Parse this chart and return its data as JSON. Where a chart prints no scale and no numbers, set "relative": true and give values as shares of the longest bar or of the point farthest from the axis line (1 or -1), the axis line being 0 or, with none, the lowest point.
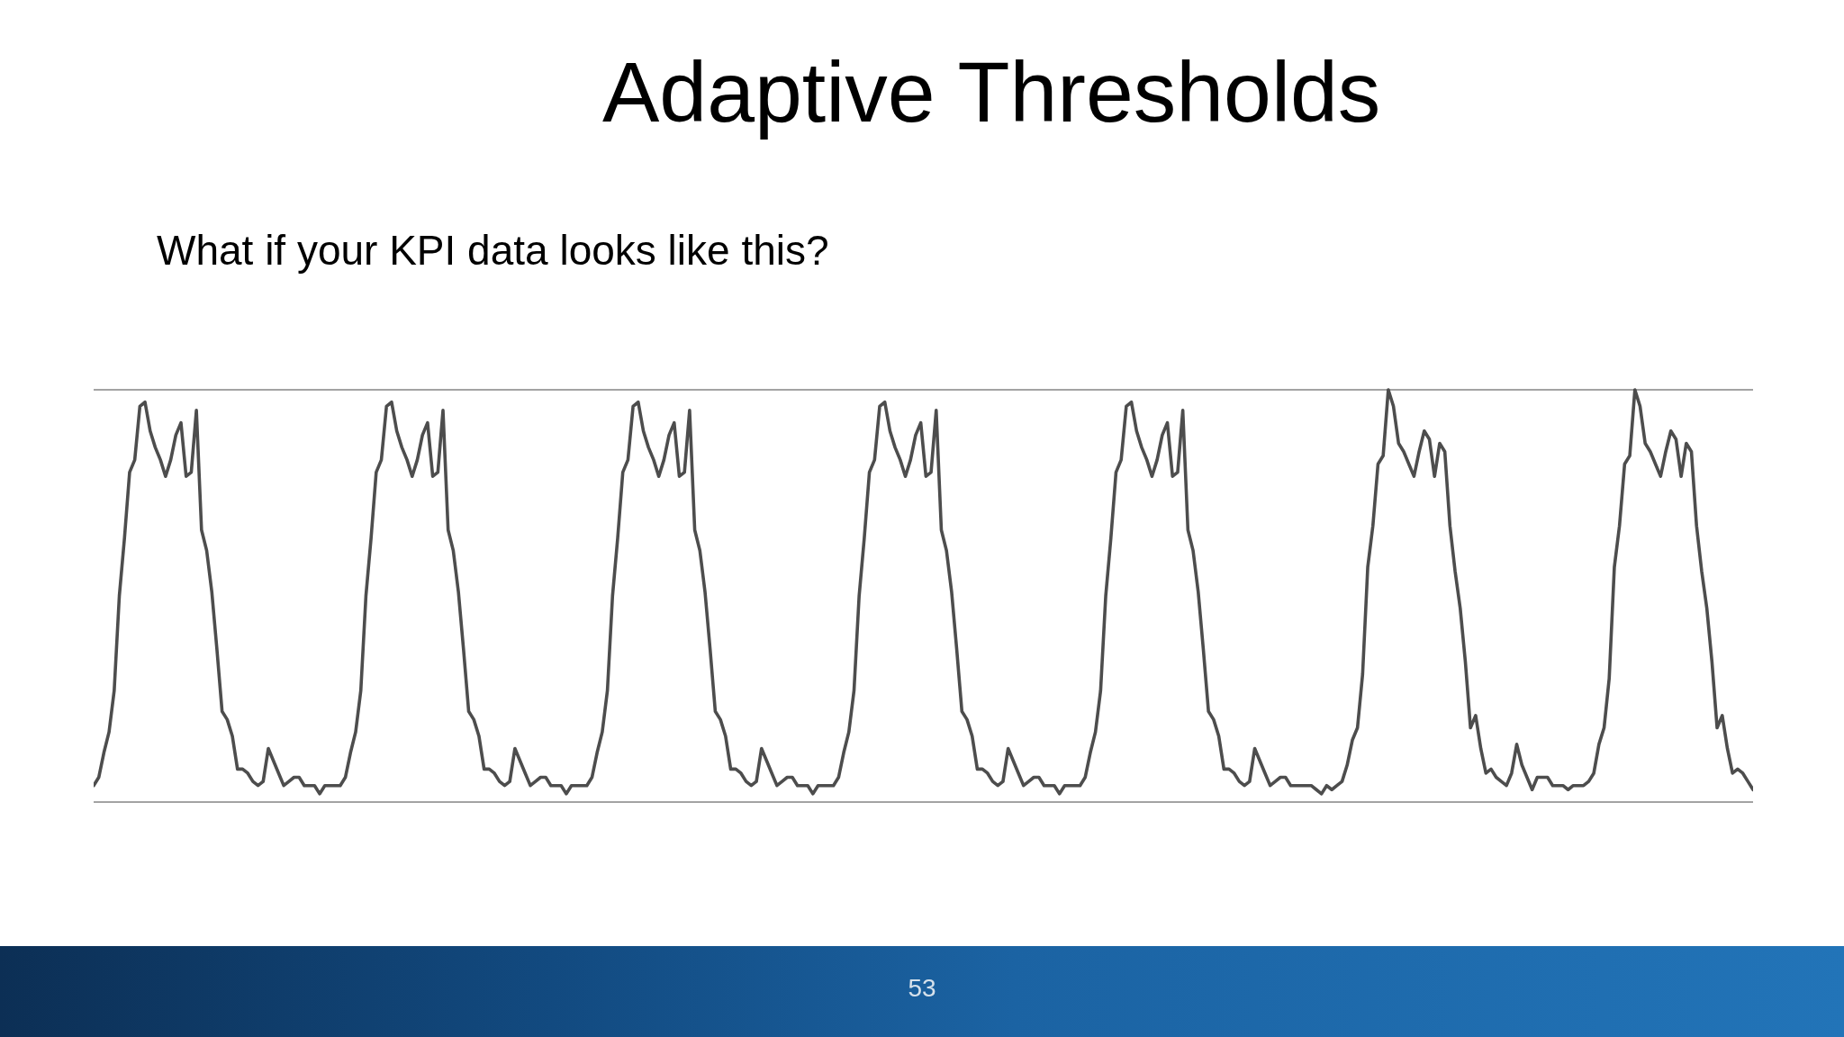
{
  "chart_data": {
    "type": "line",
    "title": "Adaptive Thresholds",
    "subtitle": "What if your KPI data looks like this?",
    "annotations": [
      "53"
    ],
    "relative": true,
    "color": "#4d4d4d",
    "categories": [
      null,
      null,
      null,
      null,
      null,
      null,
      null,
      null,
      null,
      null,
      null,
      null,
      null,
      null,
      null,
      null,
      null,
      null,
      null,
      null,
      null,
      null,
      null,
      null,
      null,
      null,
      null,
      null,
      null,
      null,
      null,
      null,
      null,
      null,
      null,
      null,
      null,
      null,
      null,
      null,
      null,
      null,
      null,
      null,
      null,
      null,
      null,
      null,
      null,
      null,
      null,
      null,
      null,
      null,
      null,
      null,
      null,
      null,
      null,
      null,
      null,
      null,
      null,
      null,
      null,
      null,
      null,
      null,
      null,
      null,
      null,
      null,
      null,
      null,
      null,
      null,
      null,
      null,
      null,
      null,
      null,
      null,
      null,
      null,
      null,
      null,
      null,
      null,
      null,
      null,
      null,
      null,
      null,
      null,
      null,
      null,
      null,
      null,
      null,
      null,
      null,
      null,
      null,
      null,
      null,
      null,
      null,
      null,
      null,
      null,
      null,
      null,
      null,
      null,
      null,
      null,
      null,
      null,
      null,
      null,
      null,
      null,
      null,
      null,
      null,
      null,
      null,
      null,
      null,
      null,
      null,
      null,
      null,
      null,
      null,
      null,
      null,
      null,
      null,
      null,
      null,
      null,
      null,
      null,
      null,
      null,
      null,
      null,
      null,
      null,
      null,
      null,
      null,
      null,
      null,
      null,
      null,
      null,
      null,
      null,
      null,
      null,
      null,
      null,
      null,
      null,
      null,
      null,
      null,
      null,
      null,
      null,
      null,
      null,
      null,
      null,
      null,
      null,
      null,
      null,
      null,
      null,
      null,
      null,
      null,
      null,
      null,
      null,
      null,
      null,
      null,
      null,
      null,
      null,
      null,
      null,
      null,
      null,
      null,
      null,
      null,
      null,
      null,
      null,
      null,
      null,
      null,
      null,
      null,
      null,
      null,
      null,
      null,
      null,
      null,
      null,
      null,
      null,
      null,
      null,
      null,
      null,
      null,
      null,
      null,
      null,
      null,
      null,
      null,
      null,
      null,
      null,
      null,
      null,
      null,
      null,
      null,
      null,
      null,
      null,
      null,
      null,
      null,
      null,
      null,
      null,
      null,
      null,
      null,
      null,
      null,
      null,
      null,
      null,
      null,
      null,
      null,
      null,
      null,
      null,
      null,
      null,
      null,
      null,
      null,
      null,
      null,
      null,
      null,
      null,
      null,
      null,
      null,
      null,
      null,
      null,
      null,
      null,
      null,
      null,
      null,
      null,
      null,
      null,
      null,
      null,
      null,
      null,
      null,
      null,
      null,
      null,
      null,
      null,
      null,
      null,
      null,
      null,
      null,
      null,
      null,
      null,
      null,
      null,
      null,
      null,
      null,
      null,
      null,
      null,
      null,
      null,
      null,
      null,
      null,
      null,
      null,
      null,
      null,
      null,
      null,
      null,
      null,
      null
    ],
    "values": [
      0.04,
      0.06,
      0.12,
      0.17,
      0.27,
      0.5,
      0.64,
      0.8,
      0.83,
      0.96,
      0.97,
      0.9,
      0.86,
      0.83,
      0.79,
      0.83,
      0.89,
      0.92,
      0.79,
      0.8,
      0.95,
      0.66,
      0.61,
      0.51,
      0.37,
      0.22,
      0.2,
      0.16,
      0.08,
      0.08,
      0.07,
      0.05,
      0.04,
      0.05,
      0.13,
      0.1,
      0.07,
      0.04,
      0.05,
      0.06,
      0.06,
      0.04,
      0.04,
      0.04,
      0.02,
      0.04,
      0.04,
      0.04,
      0.04,
      0.06,
      0.12,
      0.17,
      0.27,
      0.5,
      0.64,
      0.8,
      0.83,
      0.96,
      0.97,
      0.9,
      0.86,
      0.83,
      0.79,
      0.83,
      0.89,
      0.92,
      0.79,
      0.8,
      0.95,
      0.66,
      0.61,
      0.51,
      0.37,
      0.22,
      0.2,
      0.16,
      0.08,
      0.08,
      0.07,
      0.05,
      0.04,
      0.05,
      0.13,
      0.1,
      0.07,
      0.04,
      0.05,
      0.06,
      0.06,
      0.04,
      0.04,
      0.04,
      0.02,
      0.04,
      0.04,
      0.04,
      0.04,
      0.06,
      0.12,
      0.17,
      0.27,
      0.5,
      0.64,
      0.8,
      0.83,
      0.96,
      0.97,
      0.9,
      0.86,
      0.83,
      0.79,
      0.83,
      0.89,
      0.92,
      0.79,
      0.8,
      0.95,
      0.66,
      0.61,
      0.51,
      0.37,
      0.22,
      0.2,
      0.16,
      0.08,
      0.08,
      0.07,
      0.05,
      0.04,
      0.05,
      0.13,
      0.1,
      0.07,
      0.04,
      0.05,
      0.06,
      0.06,
      0.04,
      0.04,
      0.04,
      0.02,
      0.04,
      0.04,
      0.04,
      0.04,
      0.06,
      0.12,
      0.17,
      0.27,
      0.5,
      0.64,
      0.8,
      0.83,
      0.96,
      0.97,
      0.9,
      0.86,
      0.83,
      0.79,
      0.83,
      0.89,
      0.92,
      0.79,
      0.8,
      0.95,
      0.66,
      0.61,
      0.51,
      0.37,
      0.22,
      0.2,
      0.16,
      0.08,
      0.08,
      0.07,
      0.05,
      0.04,
      0.05,
      0.13,
      0.1,
      0.07,
      0.04,
      0.05,
      0.06,
      0.06,
      0.04,
      0.04,
      0.04,
      0.02,
      0.04,
      0.04,
      0.04,
      0.04,
      0.06,
      0.12,
      0.17,
      0.27,
      0.5,
      0.64,
      0.8,
      0.83,
      0.96,
      0.97,
      0.9,
      0.86,
      0.83,
      0.79,
      0.83,
      0.89,
      0.92,
      0.79,
      0.8,
      0.95,
      0.66,
      0.61,
      0.51,
      0.37,
      0.22,
      0.2,
      0.16,
      0.08,
      0.08,
      0.07,
      0.05,
      0.04,
      0.05,
      0.13,
      0.1,
      0.07,
      0.04,
      0.05,
      0.06,
      0.06,
      0.04,
      0.04,
      0.04,
      0.04,
      0.04,
      0.03,
      0.02,
      0.04,
      0.03,
      0.04,
      0.05,
      0.09,
      0.15,
      0.18,
      0.31,
      0.57,
      0.67,
      0.82,
      0.84,
      1,
      0.96,
      0.87,
      0.85,
      0.82,
      0.79,
      0.85,
      0.9,
      0.88,
      0.79,
      0.87,
      0.85,
      0.67,
      0.56,
      0.47,
      0.34,
      0.18,
      0.21,
      0.13,
      0.07,
      0.08,
      0.06,
      0.05,
      0.04,
      0.07,
      0.14,
      0.09,
      0.06,
      0.03,
      0.06,
      0.06,
      0.06,
      0.04,
      0.04,
      0.04,
      0.03,
      0.04,
      0.04,
      0.04,
      0.05,
      0.07,
      0.14,
      0.18,
      0.3,
      0.57,
      0.67,
      0.82,
      0.84,
      1,
      0.96,
      0.87,
      0.85,
      0.82,
      0.79,
      0.85,
      0.9,
      0.88,
      0.79,
      0.87,
      0.85,
      0.67,
      0.56,
      0.47,
      0.34,
      0.18,
      0.21,
      0.13,
      0.07,
      0.08,
      0.07,
      0.05,
      0.03
    ]
  }
}
